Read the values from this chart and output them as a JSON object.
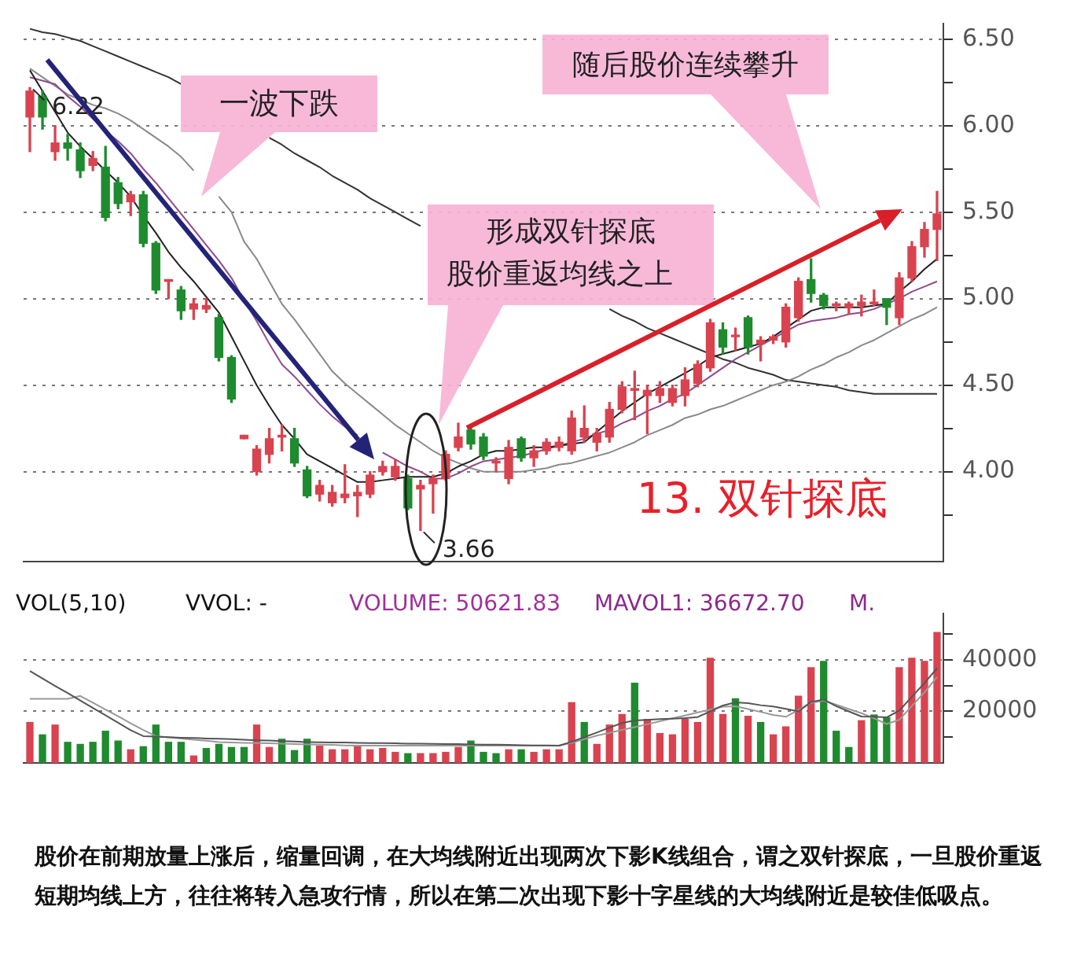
{
  "chart_data": [
    {
      "type": "candlestick",
      "categories": [
        null,
        null,
        null,
        null,
        null,
        null,
        null,
        null,
        null,
        null,
        null,
        null,
        null,
        null,
        null,
        null,
        null,
        null,
        null,
        null,
        null,
        null,
        null,
        null,
        null,
        null,
        null,
        null,
        null,
        null,
        null,
        null,
        null,
        null,
        null,
        null,
        null,
        null,
        null,
        null,
        null,
        null,
        null,
        null,
        null,
        null,
        null,
        null,
        null,
        null,
        null,
        null,
        null,
        null,
        null,
        null,
        null,
        null,
        null,
        null,
        null,
        null,
        null,
        null,
        null,
        null,
        null,
        null,
        null,
        null,
        null,
        null,
        null
      ],
      "ohlc": [
        [
          6.05,
          6.22,
          5.85,
          6.2
        ],
        [
          6.17,
          6.2,
          5.98,
          6.05
        ],
        [
          5.85,
          6.0,
          5.8,
          5.9
        ],
        [
          5.9,
          5.95,
          5.8,
          5.87
        ],
        [
          5.86,
          5.9,
          5.7,
          5.74
        ],
        [
          5.77,
          5.85,
          5.74,
          5.81
        ],
        [
          5.76,
          5.88,
          5.45,
          5.47
        ],
        [
          5.67,
          5.7,
          5.52,
          5.55
        ],
        [
          5.56,
          5.62,
          5.48,
          5.6
        ],
        [
          5.6,
          5.62,
          5.3,
          5.32
        ],
        [
          5.32,
          5.33,
          5.03,
          5.05
        ],
        [
          5.1,
          5.11,
          5.0,
          5.11
        ],
        [
          5.05,
          5.07,
          4.88,
          4.93
        ],
        [
          4.94,
          5.0,
          4.88,
          4.97
        ],
        [
          4.94,
          5.0,
          4.92,
          4.96
        ],
        [
          4.89,
          4.91,
          4.64,
          4.66
        ],
        [
          4.66,
          4.67,
          4.4,
          4.42
        ],
        [
          4.19,
          4.21,
          4.19,
          4.21
        ],
        [
          4.0,
          4.15,
          3.98,
          4.13
        ],
        [
          4.1,
          4.25,
          4.05,
          4.19
        ],
        [
          4.2,
          4.27,
          4.12,
          4.21
        ],
        [
          4.19,
          4.25,
          4.03,
          4.05
        ],
        [
          4.01,
          4.03,
          3.85,
          3.86
        ],
        [
          3.87,
          3.95,
          3.83,
          3.92
        ],
        [
          3.82,
          3.92,
          3.8,
          3.88
        ],
        [
          3.85,
          4.04,
          3.82,
          3.87
        ],
        [
          3.86,
          3.92,
          3.74,
          3.88
        ],
        [
          3.87,
          4.0,
          3.85,
          3.98
        ],
        [
          4.0,
          4.06,
          3.98,
          4.03
        ],
        [
          3.97,
          4.07,
          3.95,
          4.03
        ],
        [
          3.96,
          3.98,
          3.78,
          3.79
        ],
        [
          3.9,
          3.95,
          3.66,
          3.92
        ],
        [
          3.93,
          3.98,
          3.76,
          3.96
        ],
        [
          3.96,
          4.12,
          3.95,
          4.1
        ],
        [
          4.14,
          4.28,
          4.12,
          4.2
        ],
        [
          4.24,
          4.26,
          4.13,
          4.16
        ],
        [
          4.2,
          4.22,
          4.07,
          4.09
        ],
        [
          4.05,
          4.08,
          4.0,
          4.06
        ],
        [
          3.96,
          4.18,
          3.93,
          4.14
        ],
        [
          4.19,
          4.2,
          4.06,
          4.08
        ],
        [
          4.08,
          4.15,
          4.03,
          4.12
        ],
        [
          4.12,
          4.19,
          4.1,
          4.17
        ],
        [
          4.14,
          4.2,
          4.12,
          4.17
        ],
        [
          4.12,
          4.35,
          4.1,
          4.31
        ],
        [
          4.2,
          4.38,
          4.17,
          4.25
        ],
        [
          4.17,
          4.25,
          4.12,
          4.22
        ],
        [
          4.2,
          4.4,
          4.17,
          4.36
        ],
        [
          4.36,
          4.52,
          4.34,
          4.49
        ],
        [
          4.47,
          4.58,
          4.3,
          4.48
        ],
        [
          4.44,
          4.5,
          4.22,
          4.47
        ],
        [
          4.44,
          4.52,
          4.4,
          4.48
        ],
        [
          4.4,
          4.5,
          4.38,
          4.48
        ],
        [
          4.44,
          4.6,
          4.38,
          4.53
        ],
        [
          4.51,
          4.64,
          4.49,
          4.62
        ],
        [
          4.6,
          4.88,
          4.58,
          4.86
        ],
        [
          4.82,
          4.86,
          4.68,
          4.72
        ],
        [
          4.78,
          4.83,
          4.7,
          4.78
        ],
        [
          4.89,
          4.9,
          4.68,
          4.72
        ],
        [
          4.74,
          4.78,
          4.64,
          4.76
        ],
        [
          4.76,
          4.79,
          4.74,
          4.78
        ],
        [
          4.75,
          4.97,
          4.72,
          4.95
        ],
        [
          4.89,
          5.12,
          4.87,
          5.1
        ],
        [
          5.11,
          5.23,
          4.98,
          5.03
        ],
        [
          5.02,
          5.03,
          4.94,
          4.96
        ],
        [
          4.96,
          4.98,
          4.93,
          4.97
        ],
        [
          4.95,
          4.98,
          4.91,
          4.97
        ],
        [
          4.96,
          5.02,
          4.9,
          4.98
        ],
        [
          4.97,
          5.05,
          4.96,
          4.98
        ],
        [
          5.0,
          5.0,
          4.85,
          4.95
        ],
        [
          4.89,
          5.15,
          4.85,
          5.12
        ],
        [
          5.12,
          5.33,
          5.1,
          5.3
        ],
        [
          5.3,
          5.44,
          5.24,
          5.4
        ],
        [
          5.4,
          5.62,
          5.22,
          5.49
        ]
      ],
      "colors": [
        "#d9434f",
        "#1e8b2e",
        "#d9434f",
        "#1e8b2e",
        "#1e8b2e",
        "#d9434f",
        "#1e8b2e",
        "#1e8b2e",
        "#d9434f",
        "#1e8b2e",
        "#1e8b2e",
        "#d9434f",
        "#1e8b2e",
        "#d9434f",
        "#d9434f",
        "#1e8b2e",
        "#1e8b2e",
        "#d9434f",
        "#d9434f",
        "#d9434f",
        "#d9434f",
        "#1e8b2e",
        "#1e8b2e",
        "#d9434f",
        "#d9434f",
        "#d9434f",
        "#d9434f",
        "#d9434f",
        "#d9434f",
        "#d9434f",
        "#1e8b2e",
        "#d9434f",
        "#d9434f",
        "#d9434f",
        "#d9434f",
        "#1e8b2e",
        "#1e8b2e",
        "#d9434f",
        "#d9434f",
        "#1e8b2e",
        "#d9434f",
        "#d9434f",
        "#d9434f",
        "#d9434f",
        "#d9434f",
        "#d9434f",
        "#d9434f",
        "#d9434f",
        "#d9434f",
        "#d9434f",
        "#d9434f",
        "#d9434f",
        "#d9434f",
        "#d9434f",
        "#d9434f",
        "#1e8b2e",
        "#d9434f",
        "#1e8b2e",
        "#d9434f",
        "#d9434f",
        "#d9434f",
        "#d9434f",
        "#1e8b2e",
        "#1e8b2e",
        "#d9434f",
        "#d9434f",
        "#d9434f",
        "#d9434f",
        "#1e8b2e",
        "#d9434f",
        "#d9434f",
        "#d9434f",
        "#d9434f"
      ],
      "series": [
        {
          "type": "line",
          "color": "#222222",
          "values": [
            6.32,
            6.2,
            6.08,
            5.96,
            5.88,
            5.81,
            5.74,
            5.67,
            5.59,
            5.48,
            5.38,
            5.27,
            5.18,
            5.1,
            5.01,
            4.92,
            4.78,
            4.64,
            4.5,
            4.38,
            4.27,
            4.19,
            4.1,
            4.06,
            4.02,
            3.98,
            3.94,
            3.94,
            3.95,
            3.96,
            3.97,
            3.97,
            3.97,
            3.99,
            4.03,
            4.06,
            4.1,
            4.12,
            4.12,
            4.13,
            4.14,
            4.14,
            4.15,
            4.16,
            4.17,
            4.23,
            4.29,
            4.35,
            4.4,
            4.45,
            4.49,
            4.53,
            4.57,
            4.61,
            4.66,
            4.68,
            4.7,
            4.72,
            4.74,
            4.78,
            4.83,
            4.88,
            4.93,
            4.95,
            4.95,
            4.95,
            4.95,
            4.96,
            4.97,
            5.04,
            5.1,
            5.17,
            5.23
          ]
        },
        {
          "type": "line",
          "color": "#8e4b8e",
          "values": [
            6.28,
            6.26,
            6.24,
            6.17,
            6.11,
            6.04,
            5.97,
            5.91,
            5.84,
            5.75,
            5.67,
            5.58,
            5.49,
            5.4,
            5.31,
            5.22,
            5.12,
            4.99,
            4.87,
            4.74,
            4.62,
            4.55,
            4.47,
            4.39,
            4.32,
            4.26,
            4.21,
            null,
            4.11,
            4.07,
            4.03,
            4.0,
            3.96,
            3.96,
            3.99,
            4.03,
            4.06,
            4.07,
            4.08,
            4.09,
            4.11,
            4.13,
            4.15,
            4.17,
            4.19,
            4.22,
            4.24,
            4.28,
            4.31,
            4.35,
            4.38,
            4.42,
            4.45,
            4.5,
            4.55,
            4.6,
            4.65,
            4.69,
            4.73,
            4.77,
            4.81,
            4.85,
            4.87,
            4.88,
            4.89,
            4.91,
            4.92,
            4.94,
            4.97,
            5.0,
            5.04,
            5.07,
            5.1
          ]
        },
        {
          "type": "line",
          "color": "#8a8a8a",
          "values": [
            6.33,
            6.28,
            6.23,
            6.18,
            6.15,
            6.12,
            6.1,
            6.07,
            6.03,
            5.98,
            5.93,
            5.88,
            5.82,
            5.74,
            null,
            5.59,
            5.5,
            5.33,
            5.23,
            5.1,
            4.97,
            4.88,
            4.78,
            4.68,
            4.58,
            4.51,
            4.45,
            4.39,
            4.33,
            4.27,
            4.22,
            4.17,
            4.12,
            4.08,
            4.05,
            4.02,
            4.0,
            4.0,
            4.0,
            4.0,
            4.01,
            4.02,
            4.04,
            4.05,
            4.07,
            4.09,
            4.11,
            4.14,
            4.17,
            4.21,
            4.24,
            4.27,
            4.31,
            4.33,
            4.36,
            4.38,
            4.41,
            4.44,
            4.47,
            4.5,
            4.52,
            4.55,
            4.59,
            4.62,
            4.66,
            4.69,
            4.73,
            4.76,
            4.8,
            4.84,
            4.88,
            4.91,
            4.95
          ]
        },
        {
          "type": "line",
          "color": "#333333",
          "values": [
            6.56,
            6.54,
            6.53,
            6.51,
            6.49,
            6.46,
            6.43,
            6.4,
            6.37,
            6.34,
            6.31,
            6.28,
            6.24,
            null,
            null,
            null,
            null,
            null,
            null,
            5.93,
            5.89,
            5.84,
            5.8,
            5.76,
            5.71,
            5.67,
            5.63,
            5.58,
            5.54,
            5.5,
            5.46,
            5.42,
            null,
            null,
            null,
            null,
            null,
            null,
            null,
            null,
            null,
            null,
            null,
            null,
            null,
            null,
            4.94,
            4.9,
            4.87,
            4.83,
            4.8,
            4.77,
            4.74,
            4.71,
            4.68,
            4.65,
            4.63,
            4.6,
            4.58,
            4.56,
            4.53,
            4.52,
            4.51,
            4.5,
            4.49,
            4.47,
            4.46,
            4.45,
            4.45,
            4.45,
            4.45,
            4.45,
            4.45
          ]
        }
      ],
      "ylim": [
        3.48,
        6.59
      ],
      "yticks": [
        {
          "value": 3.75,
          "label": null
        },
        {
          "value": 4,
          "label": "4.00"
        },
        {
          "value": 4.25,
          "label": null
        },
        {
          "value": 4.5,
          "label": "4.50"
        },
        {
          "value": 4.75,
          "label": null
        },
        {
          "value": 5,
          "label": "5.00"
        },
        {
          "value": 5.25,
          "label": null
        },
        {
          "value": 5.5,
          "label": "5.50"
        },
        {
          "value": 5.75,
          "label": null
        },
        {
          "value": 6,
          "label": "6.00"
        },
        {
          "value": 6.25,
          "label": null
        },
        {
          "value": 6.5,
          "label": "6.50"
        }
      ],
      "grid": "y",
      "tick_labels": "y",
      "annotations": [
        "6.22",
        "3.66",
        "一波下跌",
        "形成双针探底",
        "股价重返均线之上",
        "随后股价连续攀升",
        "13. 双针探底"
      ]
    },
    {
      "type": "bar",
      "categories": [
        null,
        null,
        null,
        null,
        null,
        null,
        null,
        null,
        null,
        null,
        null,
        null,
        null,
        null,
        null,
        null,
        null,
        null,
        null,
        null,
        null,
        null,
        null,
        null,
        null,
        null,
        null,
        null,
        null,
        null,
        null,
        null,
        null,
        null,
        null,
        null,
        null,
        null,
        null,
        null,
        null,
        null,
        null,
        null,
        null,
        null,
        null,
        null,
        null,
        null,
        null,
        null,
        null,
        null,
        null,
        null,
        null,
        null,
        null,
        null,
        null,
        null,
        null,
        null,
        null,
        null,
        null,
        null,
        null,
        null,
        null,
        null,
        null
      ],
      "values": [
        15700,
        10900,
        14700,
        8000,
        7200,
        8000,
        12300,
        8500,
        5100,
        6300,
        14700,
        8000,
        8000,
        2700,
        5600,
        7200,
        6000,
        6000,
        14700,
        6000,
        9200,
        4800,
        9200,
        6500,
        5100,
        5100,
        6500,
        5100,
        5600,
        4100,
        3600,
        3600,
        3600,
        4100,
        6000,
        8500,
        4100,
        3600,
        5100,
        5100,
        4100,
        5100,
        5100,
        23400,
        15700,
        7200,
        14700,
        18800,
        30900,
        16900,
        11400,
        10900,
        16900,
        15700,
        40600,
        18800,
        24900,
        18100,
        15700,
        10900,
        14000,
        25900,
        37000,
        39400,
        12300,
        6000,
        16400,
        18600,
        17600,
        37000,
        40600,
        39400,
        50600
      ],
      "colors": [
        "#d9434f",
        "#1e8b2e",
        "#d9434f",
        "#1e8b2e",
        "#1e8b2e",
        "#1e8b2e",
        "#1e8b2e",
        "#1e8b2e",
        "#d9434f",
        "#1e8b2e",
        "#1e8b2e",
        "#1e8b2e",
        "#1e8b2e",
        "#d9434f",
        "#1e8b2e",
        "#1e8b2e",
        "#1e8b2e",
        "#1e8b2e",
        "#d9434f",
        "#d9434f",
        "#1e8b2e",
        "#1e8b2e",
        "#1e8b2e",
        "#d9434f",
        "#d9434f",
        "#d9434f",
        "#d9434f",
        "#d9434f",
        "#d9434f",
        "#d9434f",
        "#1e8b2e",
        "#d9434f",
        "#d9434f",
        "#d9434f",
        "#d9434f",
        "#1e8b2e",
        "#1e8b2e",
        "#1e8b2e",
        "#d9434f",
        "#1e8b2e",
        "#d9434f",
        "#d9434f",
        "#d9434f",
        "#d9434f",
        "#1e8b2e",
        "#d9434f",
        "#d9434f",
        "#d9434f",
        "#1e8b2e",
        "#d9434f",
        "#d9434f",
        "#d9434f",
        "#d9434f",
        "#d9434f",
        "#d9434f",
        "#d9434f",
        "#1e8b2e",
        "#d9434f",
        "#1e8b2e",
        "#d9434f",
        "#d9434f",
        "#d9434f",
        "#d9434f",
        "#1e8b2e",
        "#1e8b2e",
        "#1e8b2e",
        "#d9434f",
        "#1e8b2e",
        "#1e8b2e",
        "#d9434f",
        "#d9434f",
        "#d9434f",
        "#d9434f"
      ],
      "series": [
        {
          "type": "line",
          "color": "#555555",
          "values": [
            35700,
            32800,
            29900,
            27100,
            24200,
            21300,
            18500,
            15600,
            12700,
            10400,
            10200,
            10000,
            9800,
            9700,
            9500,
            9400,
            9200,
            9000,
            8800,
            8700,
            8500,
            8300,
            8100,
            8000,
            7900,
            7900,
            7800,
            7700,
            7700,
            7600,
            7500,
            7500,
            7400,
            7300,
            7300,
            7200,
            7100,
            7100,
            7000,
            6900,
            6800,
            6800,
            6700,
            8200,
            10000,
            11800,
            13700,
            15500,
            16500,
            16700,
            17000,
            17200,
            17400,
            17800,
            20000,
            22300,
            23500,
            23200,
            22400,
            21900,
            21000,
            20000,
            23700,
            24600,
            22000,
            20000,
            18000,
            17900,
            17700,
            20300,
            25700,
            31000,
            36700
          ]
        },
        {
          "type": "line",
          "color": "#999999",
          "values": [
            24900,
            24900,
            24900,
            24900,
            26000,
            23400,
            20700,
            18100,
            15400,
            12800,
            10400,
            9900,
            9500,
            9000,
            8600,
            8100,
            7900,
            7800,
            7700,
            7600,
            7500,
            7300,
            7200,
            7100,
            7000,
            6800,
            6700,
            6700,
            6700,
            6700,
            6700,
            6700,
            6700,
            6700,
            6700,
            6700,
            6700,
            6700,
            6700,
            6700,
            6700,
            6700,
            6700,
            7800,
            9200,
            10600,
            11700,
            12800,
            13900,
            15000,
            16200,
            17300,
            18400,
            19600,
            20700,
            21800,
            22000,
            20900,
            19800,
            18600,
            17900,
            20600,
            23300,
            24200,
            22600,
            20900,
            19300,
            17300,
            15100,
            16700,
            22100,
            27400,
            33300
          ]
        }
      ],
      "ylim": [
        0,
        58000
      ],
      "yticks": [
        {
          "value": 10000,
          "label": null
        },
        20000,
        {
          "value": 30000,
          "label": null
        },
        40000,
        {
          "value": 50000,
          "label": null
        }
      ],
      "grid": "y",
      "tick_labels": "y",
      "annotations": [
        "VOL(5,10)",
        "VVOL: -",
        "VOLUME: 50621.83",
        "MAVOL1: 36672.70",
        "M.",
        "股价在前期放量上涨后，缩量回调，在大均线附近出现两次下影K线组合，谓之双针探底，一旦股价重返短期均线上方，往往将转入急攻行情，所以在第二次出现下影十字星线的大均线附近是较佳低吸点。"
      ]
    }
  ]
}
